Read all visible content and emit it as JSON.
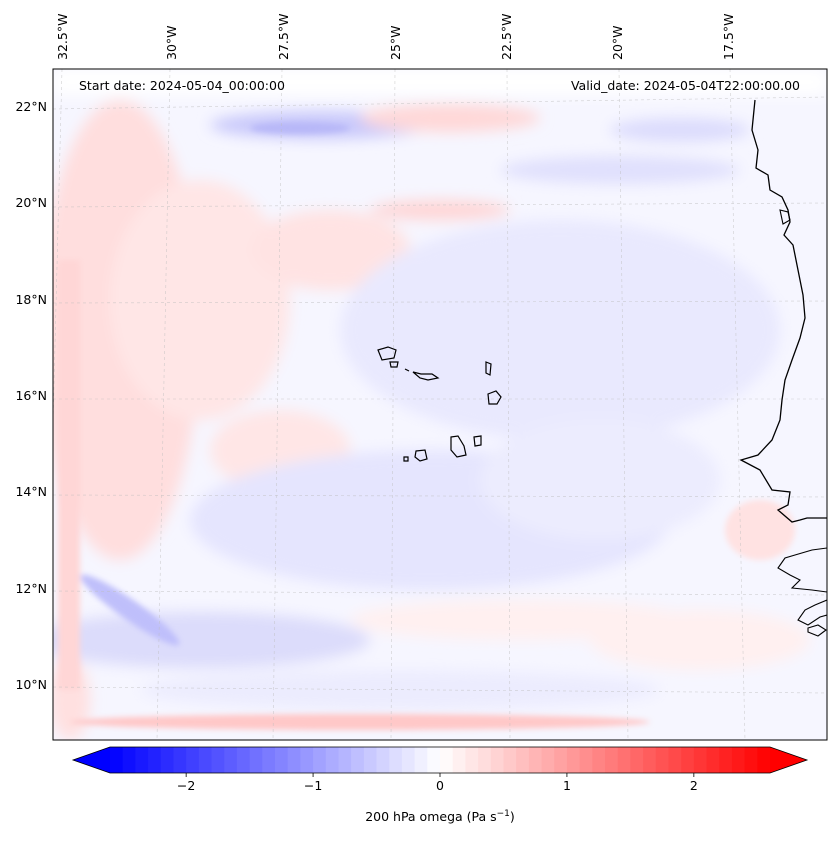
{
  "chart_data": {
    "type": "map",
    "variable_label": "200 hPa omega (Pa s",
    "variable_unit_exponent": "−1",
    "variable_label_close": ")",
    "annotations": {
      "start_date": "Start date: 2024-05-04_00:00:00",
      "valid_date": "Valid_date: 2024-05-04T22:00:00.00"
    },
    "longitude_ticks": [
      "32.5°W",
      "30°W",
      "27.5°W",
      "25°W",
      "22.5°W",
      "20°W",
      "17.5°W"
    ],
    "latitude_ticks": [
      "22°N",
      "20°N",
      "18°N",
      "16°N",
      "14°N",
      "12°N",
      "10°N"
    ],
    "colorbar": {
      "min": -2.6,
      "max": 2.6,
      "extend": "both",
      "tick_values": [
        -2,
        -1,
        0,
        1,
        2
      ],
      "tick_labels": [
        "−2",
        "−1",
        "0",
        "1",
        "2"
      ],
      "colors": {
        "negative": "#0000ff",
        "zero": "#ffffff",
        "positive": "#ff0000"
      }
    },
    "features": [
      "Cape Verde islands",
      "West African coastline"
    ]
  }
}
